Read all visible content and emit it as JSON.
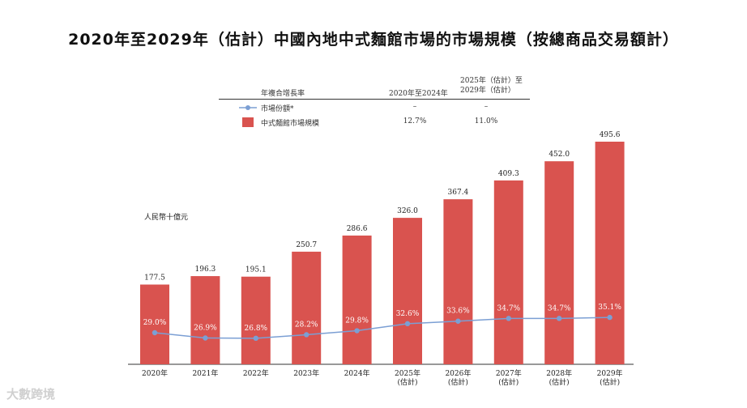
{
  "chart_data": {
    "type": "bar",
    "title": "2020年至2029年（估計）中國內地中式麵館市場的市場規模（按總商品交易額計）",
    "ylabel": "人民幣十億元",
    "categories": [
      [
        "2020年"
      ],
      [
        "2021年"
      ],
      [
        "2022年"
      ],
      [
        "2023年"
      ],
      [
        "2024年"
      ],
      [
        "2025年",
        "(估計)"
      ],
      [
        "2026年",
        "(估計)"
      ],
      [
        "2027年",
        "(估計)"
      ],
      [
        "2028年",
        "(估計)"
      ],
      [
        "2029年",
        "(估計)"
      ]
    ],
    "series": [
      {
        "name": "中式麵館市場規模",
        "type": "bar",
        "color": "#d9534f",
        "values": [
          177.5,
          196.3,
          195.1,
          250.7,
          286.6,
          326.0,
          367.4,
          409.3,
          452.0,
          495.6
        ],
        "labels": [
          "177.5",
          "196.3",
          "195.1",
          "250.7",
          "286.6",
          "326.0",
          "367.4",
          "409.3",
          "452.0",
          "495.6"
        ]
      },
      {
        "name": "市場份額*",
        "type": "line",
        "color": "#7b9fd4",
        "values": [
          29.0,
          26.9,
          26.8,
          28.2,
          29.8,
          32.6,
          33.6,
          34.7,
          34.7,
          35.1
        ],
        "labels": [
          "29.0%",
          "26.9%",
          "26.8%",
          "28.2%",
          "29.8%",
          "32.6%",
          "33.6%",
          "34.7%",
          "34.7%",
          "35.1%"
        ]
      }
    ],
    "cagr_table": {
      "header": "年複合增長率",
      "col1": "2020年至2024年",
      "col2": "2025年（估計）至\n2029年（估計）",
      "rows": [
        {
          "name": "市場份額*",
          "v1": "–",
          "v2": "–"
        },
        {
          "name": "中式麵館市場規模",
          "v1": "12.7%",
          "v2": "11.0%"
        }
      ]
    }
  },
  "watermark": "大數跨境"
}
